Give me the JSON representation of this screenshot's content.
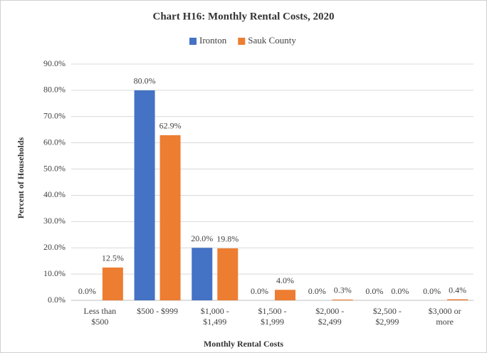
{
  "chart_data": {
    "type": "bar",
    "title": "Chart H16: Monthly Rental Costs, 2020",
    "x_label": "Monthly Rental Costs",
    "y_label": "Percent of Households",
    "categories": [
      [
        "Less than",
        "$500"
      ],
      [
        "$500 - $999"
      ],
      [
        "$1,000 -",
        "$1,499"
      ],
      [
        "$1,500 -",
        "$1,999"
      ],
      [
        "$2,000 -",
        "$2,499"
      ],
      [
        "$2,500 -",
        "$2,999"
      ],
      [
        "$3,000 or",
        "more"
      ]
    ],
    "series": [
      {
        "name": "Ironton",
        "color": "#4472c4",
        "values": [
          0,
          80,
          20,
          0,
          0,
          0,
          0
        ],
        "value_labels": [
          "0.0%",
          "80.0%",
          "20.0%",
          "0.0%",
          "0.0%",
          "0.0%",
          "0.0%"
        ]
      },
      {
        "name": "Sauk County",
        "color": "#ed7d31",
        "values": [
          12.5,
          62.9,
          19.8,
          4,
          0.3,
          0,
          0.4
        ],
        "value_labels": [
          "12.5%",
          "62.9%",
          "19.8%",
          "4.0%",
          "0.3%",
          "0.0%",
          "0.4%"
        ]
      }
    ],
    "ylim": [
      0,
      90
    ],
    "yticks": [
      {
        "value": 0,
        "label": "0.0%"
      },
      {
        "value": 10,
        "label": "10.0%"
      },
      {
        "value": 20,
        "label": "20.0%"
      },
      {
        "value": 30,
        "label": "30.0%"
      },
      {
        "value": 40,
        "label": "40.0%"
      },
      {
        "value": 50,
        "label": "50.0%"
      },
      {
        "value": 60,
        "label": "60.0%"
      },
      {
        "value": 70,
        "label": "70.0%"
      },
      {
        "value": 80,
        "label": "80.0%"
      },
      {
        "value": 90,
        "label": "90.0%"
      }
    ],
    "grid": true,
    "legend": "top"
  }
}
